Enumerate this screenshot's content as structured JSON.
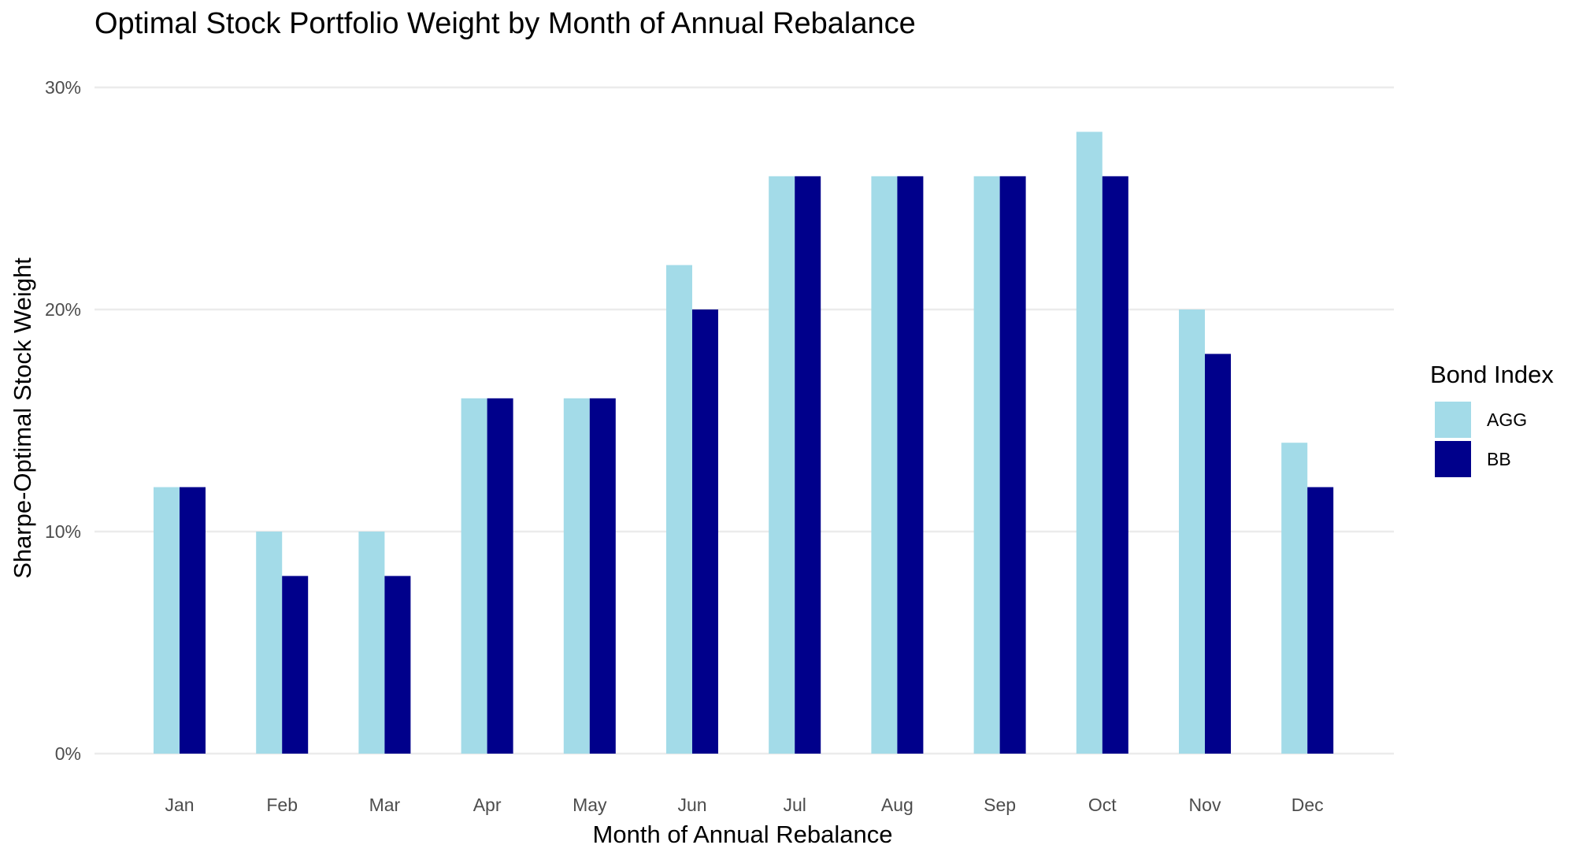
{
  "chart_data": {
    "type": "bar",
    "title": "Optimal Stock Portfolio Weight by Month of Annual Rebalance",
    "xlabel": "Month of Annual Rebalance",
    "ylabel": "Sharpe-Optimal Stock Weight",
    "categories": [
      "Jan",
      "Feb",
      "Mar",
      "Apr",
      "May",
      "Jun",
      "Jul",
      "Aug",
      "Sep",
      "Oct",
      "Nov",
      "Dec"
    ],
    "series": [
      {
        "name": "AGG",
        "color": "#a3dbe8",
        "values": [
          12,
          10,
          10,
          16,
          16,
          22,
          26,
          26,
          26,
          28,
          20,
          14
        ]
      },
      {
        "name": "BB",
        "color": "#00008b",
        "values": [
          12,
          8,
          8,
          16,
          16,
          20,
          26,
          26,
          26,
          26,
          18,
          12
        ]
      }
    ],
    "ylim": [
      0,
      30
    ],
    "yticks": [
      0,
      10,
      20,
      30
    ],
    "ytick_labels": [
      "0%",
      "10%",
      "20%",
      "30%"
    ],
    "grid": true,
    "legend": {
      "title": "Bond Index",
      "position": "right"
    }
  }
}
